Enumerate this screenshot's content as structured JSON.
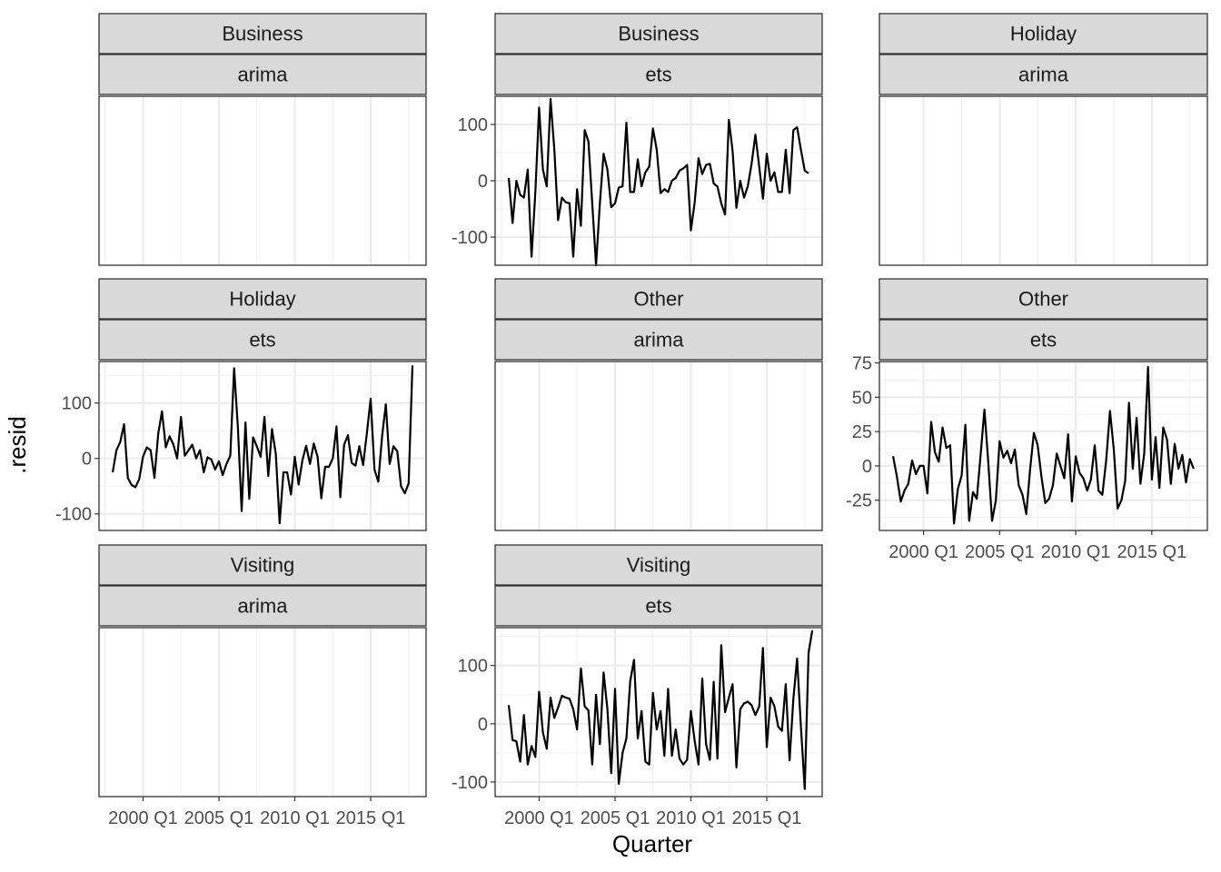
{
  "chart_data": {
    "type": "line",
    "xlabel": "Quarter",
    "ylabel": ".resid",
    "x_ticks": [
      "2000 Q1",
      "2005 Q1",
      "2010 Q1",
      "2015 Q1"
    ],
    "grid": true,
    "layout": "facet grid by purpose and model, free y scales",
    "panels": [
      {
        "strips": [
          "Business",
          "arima"
        ],
        "yticks": [],
        "values": []
      },
      {
        "strips": [
          "Business",
          "ets"
        ],
        "yticks": [
          -100,
          0,
          100
        ],
        "ylim": [
          -150,
          150
        ],
        "values": [
          5,
          -75,
          0,
          -25,
          -30,
          20,
          -135,
          -20,
          130,
          20,
          -10,
          145,
          55,
          -70,
          -30,
          -38,
          -40,
          -135,
          -15,
          -80,
          90,
          70,
          -40,
          -150,
          -40,
          48,
          20,
          -47,
          -40,
          -12,
          -10,
          103,
          -20,
          -20,
          38,
          -10,
          15,
          25,
          93,
          55,
          -22,
          -15,
          -20,
          0,
          5,
          18,
          22,
          28,
          -88,
          -38,
          40,
          12,
          28,
          30,
          -5,
          -10,
          -40,
          -60,
          108,
          53,
          -48,
          0,
          -30,
          -10,
          30,
          82,
          25,
          -32,
          48,
          0,
          15,
          -20,
          -20,
          55,
          -22,
          90,
          95,
          55,
          18,
          13
        ]
      },
      {
        "strips": [
          "Holiday",
          "arima"
        ],
        "yticks": [],
        "values": []
      },
      {
        "strips": [
          "Holiday",
          "ets"
        ],
        "yticks": [
          -100,
          0,
          100
        ],
        "ylim": [
          -130,
          175
        ],
        "values": [
          -25,
          15,
          30,
          62,
          -35,
          -48,
          -52,
          -37,
          3,
          20,
          15,
          -35,
          45,
          85,
          20,
          40,
          25,
          0,
          75,
          5,
          15,
          25,
          0,
          15,
          -25,
          2,
          -2,
          -20,
          -5,
          -30,
          -10,
          5,
          163,
          55,
          -95,
          65,
          -73,
          38,
          22,
          3,
          75,
          -32,
          53,
          8,
          -117,
          -25,
          -25,
          -65,
          3,
          -47,
          -3,
          23,
          -10,
          27,
          3,
          -72,
          -15,
          -15,
          0,
          58,
          -70,
          25,
          42,
          -8,
          -13,
          22,
          -12,
          45,
          108,
          -20,
          -42,
          40,
          98,
          -10,
          22,
          13,
          -50,
          -63,
          -45,
          168
        ]
      },
      {
        "strips": [
          "Other",
          "arima"
        ],
        "yticks": [],
        "values": []
      },
      {
        "strips": [
          "Other",
          "ets"
        ],
        "yticks": [
          -25,
          0,
          25,
          50,
          75
        ],
        "ylim": [
          -47,
          76
        ],
        "values": [
          7,
          -8,
          -26,
          -18,
          -13,
          4,
          -6,
          0,
          0,
          -20,
          32,
          10,
          3,
          28,
          13,
          15,
          -42,
          -17,
          -7,
          30,
          -40,
          -19,
          -24,
          8,
          41,
          3,
          -40,
          -25,
          18,
          6,
          11,
          2,
          12,
          -14,
          -21,
          -35,
          -3,
          24,
          15,
          -8,
          -27,
          -24,
          -14,
          9,
          0,
          -9,
          23,
          -26,
          7,
          -5,
          -9,
          -18,
          -10,
          15,
          -18,
          -21,
          4,
          40,
          12,
          -31,
          -25,
          -11,
          46,
          -2,
          35,
          -13,
          9,
          72,
          -10,
          21,
          -16,
          28,
          19,
          -13,
          16,
          -2,
          8,
          -12,
          5,
          -2
        ]
      },
      {
        "strips": [
          "Visiting",
          "arima"
        ],
        "yticks": [],
        "values": []
      },
      {
        "strips": [
          "Visiting",
          "ets"
        ],
        "yticks": [
          -100,
          0,
          100
        ],
        "ylim": [
          -125,
          165
        ],
        "values": [
          32,
          -28,
          -30,
          -65,
          15,
          -70,
          -38,
          -57,
          55,
          -15,
          -43,
          45,
          10,
          28,
          48,
          45,
          43,
          25,
          -10,
          95,
          30,
          23,
          -70,
          50,
          -35,
          88,
          25,
          -85,
          60,
          -103,
          -50,
          -25,
          73,
          110,
          -25,
          22,
          -65,
          -70,
          53,
          -10,
          22,
          -55,
          60,
          -55,
          -10,
          -60,
          -70,
          -62,
          22,
          -30,
          -70,
          78,
          -35,
          -62,
          72,
          -60,
          135,
          20,
          45,
          68,
          -75,
          25,
          35,
          38,
          32,
          15,
          30,
          130,
          -40,
          45,
          30,
          -5,
          -12,
          68,
          -63,
          43,
          112,
          -5,
          -112,
          122,
          160
        ]
      }
    ]
  }
}
